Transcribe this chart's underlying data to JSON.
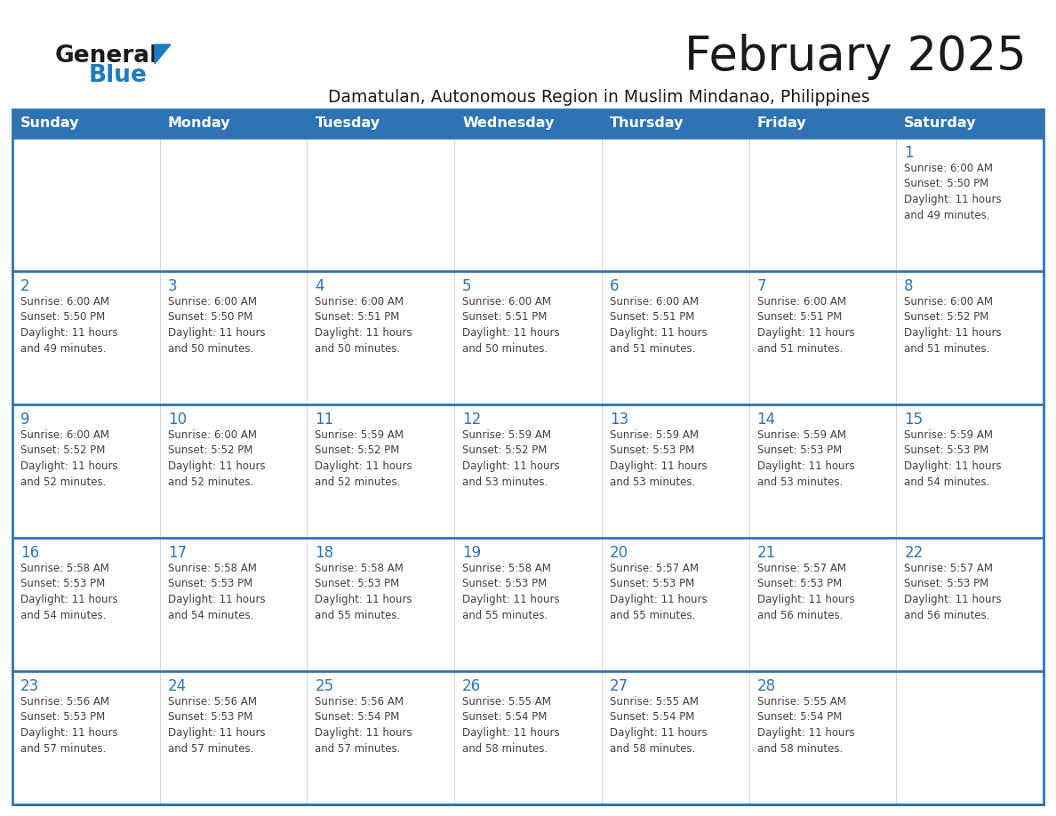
{
  "title": "February 2025",
  "subtitle": "Damatulan, Autonomous Region in Muslim Mindanao, Philippines",
  "header_bg": "#2e74b5",
  "header_text_color": "#ffffff",
  "cell_bg": "#ffffff",
  "row_separator_color": "#2e74b5",
  "outer_border_color": "#2e74b5",
  "day_names": [
    "Sunday",
    "Monday",
    "Tuesday",
    "Wednesday",
    "Thursday",
    "Friday",
    "Saturday"
  ],
  "days": [
    {
      "day": 1,
      "col": 6,
      "row": 0,
      "sunrise": "6:00 AM",
      "sunset": "5:50 PM",
      "daylight_hours": 11,
      "daylight_minutes": 49
    },
    {
      "day": 2,
      "col": 0,
      "row": 1,
      "sunrise": "6:00 AM",
      "sunset": "5:50 PM",
      "daylight_hours": 11,
      "daylight_minutes": 49
    },
    {
      "day": 3,
      "col": 1,
      "row": 1,
      "sunrise": "6:00 AM",
      "sunset": "5:50 PM",
      "daylight_hours": 11,
      "daylight_minutes": 50
    },
    {
      "day": 4,
      "col": 2,
      "row": 1,
      "sunrise": "6:00 AM",
      "sunset": "5:51 PM",
      "daylight_hours": 11,
      "daylight_minutes": 50
    },
    {
      "day": 5,
      "col": 3,
      "row": 1,
      "sunrise": "6:00 AM",
      "sunset": "5:51 PM",
      "daylight_hours": 11,
      "daylight_minutes": 50
    },
    {
      "day": 6,
      "col": 4,
      "row": 1,
      "sunrise": "6:00 AM",
      "sunset": "5:51 PM",
      "daylight_hours": 11,
      "daylight_minutes": 51
    },
    {
      "day": 7,
      "col": 5,
      "row": 1,
      "sunrise": "6:00 AM",
      "sunset": "5:51 PM",
      "daylight_hours": 11,
      "daylight_minutes": 51
    },
    {
      "day": 8,
      "col": 6,
      "row": 1,
      "sunrise": "6:00 AM",
      "sunset": "5:52 PM",
      "daylight_hours": 11,
      "daylight_minutes": 51
    },
    {
      "day": 9,
      "col": 0,
      "row": 2,
      "sunrise": "6:00 AM",
      "sunset": "5:52 PM",
      "daylight_hours": 11,
      "daylight_minutes": 52
    },
    {
      "day": 10,
      "col": 1,
      "row": 2,
      "sunrise": "6:00 AM",
      "sunset": "5:52 PM",
      "daylight_hours": 11,
      "daylight_minutes": 52
    },
    {
      "day": 11,
      "col": 2,
      "row": 2,
      "sunrise": "5:59 AM",
      "sunset": "5:52 PM",
      "daylight_hours": 11,
      "daylight_minutes": 52
    },
    {
      "day": 12,
      "col": 3,
      "row": 2,
      "sunrise": "5:59 AM",
      "sunset": "5:52 PM",
      "daylight_hours": 11,
      "daylight_minutes": 53
    },
    {
      "day": 13,
      "col": 4,
      "row": 2,
      "sunrise": "5:59 AM",
      "sunset": "5:53 PM",
      "daylight_hours": 11,
      "daylight_minutes": 53
    },
    {
      "day": 14,
      "col": 5,
      "row": 2,
      "sunrise": "5:59 AM",
      "sunset": "5:53 PM",
      "daylight_hours": 11,
      "daylight_minutes": 53
    },
    {
      "day": 15,
      "col": 6,
      "row": 2,
      "sunrise": "5:59 AM",
      "sunset": "5:53 PM",
      "daylight_hours": 11,
      "daylight_minutes": 54
    },
    {
      "day": 16,
      "col": 0,
      "row": 3,
      "sunrise": "5:58 AM",
      "sunset": "5:53 PM",
      "daylight_hours": 11,
      "daylight_minutes": 54
    },
    {
      "day": 17,
      "col": 1,
      "row": 3,
      "sunrise": "5:58 AM",
      "sunset": "5:53 PM",
      "daylight_hours": 11,
      "daylight_minutes": 54
    },
    {
      "day": 18,
      "col": 2,
      "row": 3,
      "sunrise": "5:58 AM",
      "sunset": "5:53 PM",
      "daylight_hours": 11,
      "daylight_minutes": 55
    },
    {
      "day": 19,
      "col": 3,
      "row": 3,
      "sunrise": "5:58 AM",
      "sunset": "5:53 PM",
      "daylight_hours": 11,
      "daylight_minutes": 55
    },
    {
      "day": 20,
      "col": 4,
      "row": 3,
      "sunrise": "5:57 AM",
      "sunset": "5:53 PM",
      "daylight_hours": 11,
      "daylight_minutes": 55
    },
    {
      "day": 21,
      "col": 5,
      "row": 3,
      "sunrise": "5:57 AM",
      "sunset": "5:53 PM",
      "daylight_hours": 11,
      "daylight_minutes": 56
    },
    {
      "day": 22,
      "col": 6,
      "row": 3,
      "sunrise": "5:57 AM",
      "sunset": "5:53 PM",
      "daylight_hours": 11,
      "daylight_minutes": 56
    },
    {
      "day": 23,
      "col": 0,
      "row": 4,
      "sunrise": "5:56 AM",
      "sunset": "5:53 PM",
      "daylight_hours": 11,
      "daylight_minutes": 57
    },
    {
      "day": 24,
      "col": 1,
      "row": 4,
      "sunrise": "5:56 AM",
      "sunset": "5:53 PM",
      "daylight_hours": 11,
      "daylight_minutes": 57
    },
    {
      "day": 25,
      "col": 2,
      "row": 4,
      "sunrise": "5:56 AM",
      "sunset": "5:54 PM",
      "daylight_hours": 11,
      "daylight_minutes": 57
    },
    {
      "day": 26,
      "col": 3,
      "row": 4,
      "sunrise": "5:55 AM",
      "sunset": "5:54 PM",
      "daylight_hours": 11,
      "daylight_minutes": 58
    },
    {
      "day": 27,
      "col": 4,
      "row": 4,
      "sunrise": "5:55 AM",
      "sunset": "5:54 PM",
      "daylight_hours": 11,
      "daylight_minutes": 58
    },
    {
      "day": 28,
      "col": 5,
      "row": 4,
      "sunrise": "5:55 AM",
      "sunset": "5:54 PM",
      "daylight_hours": 11,
      "daylight_minutes": 58
    }
  ],
  "num_rows": 5,
  "logo_color_general": "#1a1a1a",
  "logo_color_blue": "#1e7bbf",
  "logo_triangle_color": "#1e7bbf",
  "title_color": "#1a1a1a",
  "subtitle_color": "#1a1a1a",
  "cell_number_color": "#2e74b5",
  "cell_text_color": "#404040",
  "title_fontsize": 38,
  "subtitle_fontsize": 13.5,
  "header_fontsize": 11.5,
  "day_number_fontsize": 12,
  "cell_text_fontsize": 8.5
}
